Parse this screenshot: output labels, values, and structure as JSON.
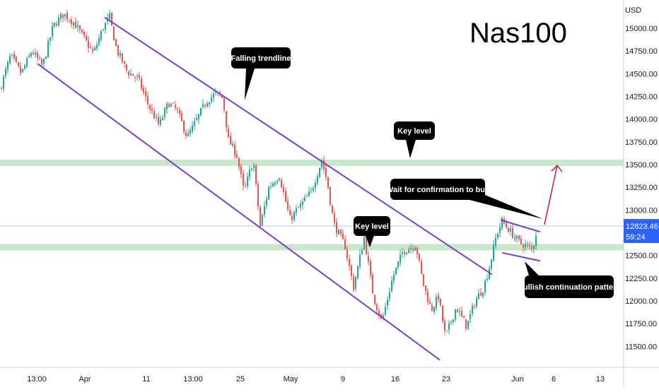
{
  "chart_data": {
    "type": "candlestick",
    "title": "Nas100",
    "currency": "USD",
    "y_range": [
      11350,
      15180
    ],
    "x_range": [
      0,
      882
    ],
    "grid": false,
    "y_ticks": [
      15000,
      14750,
      14500,
      14250,
      14000,
      13750,
      13500,
      13250,
      13000,
      12750,
      12500,
      12250,
      12000,
      11750,
      11500
    ],
    "y_tick_labels": [
      "15000.00",
      "14750.00",
      "14500.00",
      "14250.00",
      "14000.00",
      "13750.00",
      "13500.00",
      "13250.00",
      "13000.00",
      "12750.00",
      "12500.00",
      "12250.00",
      "12000.00",
      "11750.00",
      "11500.00"
    ],
    "x_tick_labels": [
      {
        "label": "13:00",
        "x": 52
      },
      {
        "label": "Apr",
        "x": 120
      },
      {
        "label": "11",
        "x": 207
      },
      {
        "label": "13:00",
        "x": 273
      },
      {
        "label": "25",
        "x": 340
      },
      {
        "label": "May",
        "x": 411
      },
      {
        "label": "9",
        "x": 485
      },
      {
        "label": "16",
        "x": 559
      },
      {
        "label": "23",
        "x": 631
      },
      {
        "label": "Jun",
        "x": 732
      },
      {
        "label": "6",
        "x": 783
      },
      {
        "label": "13",
        "x": 849
      }
    ],
    "price_path": [
      [
        0,
        14330
      ],
      [
        15,
        14700
      ],
      [
        30,
        14500
      ],
      [
        45,
        14750
      ],
      [
        60,
        14580
      ],
      [
        75,
        15020
      ],
      [
        90,
        15160
      ],
      [
        105,
        15060
      ],
      [
        118,
        14900
      ],
      [
        132,
        14720
      ],
      [
        146,
        15010
      ],
      [
        155,
        15120
      ],
      [
        165,
        14760
      ],
      [
        180,
        14520
      ],
      [
        195,
        14450
      ],
      [
        210,
        14150
      ],
      [
        225,
        13930
      ],
      [
        238,
        14180
      ],
      [
        250,
        14100
      ],
      [
        265,
        13800
      ],
      [
        278,
        13990
      ],
      [
        292,
        14200
      ],
      [
        305,
        14280
      ],
      [
        315,
        14230
      ],
      [
        323,
        13770
      ],
      [
        335,
        13600
      ],
      [
        345,
        13200
      ],
      [
        358,
        13550
      ],
      [
        368,
        12820
      ],
      [
        380,
        13250
      ],
      [
        395,
        13380
      ],
      [
        410,
        12900
      ],
      [
        425,
        13050
      ],
      [
        440,
        13200
      ],
      [
        455,
        13550
      ],
      [
        463,
        13300
      ],
      [
        472,
        12850
      ],
      [
        488,
        12600
      ],
      [
        500,
        12150
      ],
      [
        515,
        12700
      ],
      [
        528,
        12050
      ],
      [
        540,
        11770
      ],
      [
        555,
        12250
      ],
      [
        570,
        12550
      ],
      [
        588,
        12620
      ],
      [
        598,
        12200
      ],
      [
        610,
        11900
      ],
      [
        620,
        12050
      ],
      [
        630,
        11600
      ],
      [
        645,
        11930
      ],
      [
        660,
        11720
      ],
      [
        672,
        12000
      ],
      [
        684,
        12150
      ],
      [
        692,
        12370
      ],
      [
        702,
        12720
      ],
      [
        710,
        12880
      ],
      [
        722,
        12760
      ],
      [
        735,
        12640
      ],
      [
        746,
        12600
      ],
      [
        753,
        12560
      ],
      [
        760,
        12820
      ]
    ],
    "levels": [
      {
        "name": "key-level-upper",
        "price": 13520
      },
      {
        "name": "key-level-lower",
        "price": 12590
      }
    ],
    "last_price": {
      "value": "12823.46",
      "countdown": "59:24",
      "price": 12823.46
    },
    "trendlines": [
      {
        "name": "falling-trendline-upper",
        "from": [
          148,
          15120
        ],
        "to": [
          696,
          12290
        ]
      },
      {
        "name": "falling-trendline-lower",
        "from": [
          53,
          14610
        ],
        "to": [
          622,
          11350
        ]
      },
      {
        "name": "flag-upper-line",
        "from": [
          708,
          12890
        ],
        "to": [
          764,
          12760
        ]
      },
      {
        "name": "flag-lower-line",
        "from": [
          710,
          12530
        ],
        "to": [
          764,
          12440
        ]
      }
    ],
    "projection": {
      "from": [
        770,
        12840
      ],
      "to": [
        788,
        13490
      ]
    },
    "annotations": [
      {
        "name": "callout-falling-trendline",
        "text": "Falling trendline"
      },
      {
        "name": "callout-key-level-upper",
        "text": "Key level"
      },
      {
        "name": "callout-key-level-lower",
        "text": "Key level"
      },
      {
        "name": "callout-wait-confirmation",
        "text": "Wait for confirmation to buy"
      },
      {
        "name": "callout-bullish-pattern",
        "text": "Bullish continuation pattern"
      }
    ]
  },
  "colors": {
    "up": "#26a69a",
    "down": "#ef5350",
    "channel": "#7b3fc4",
    "key_level": "#c8e6c9",
    "projection": "#c2185b",
    "badge": "#2962ff",
    "price_line": "#b3c6f7",
    "callout": "#000000"
  }
}
